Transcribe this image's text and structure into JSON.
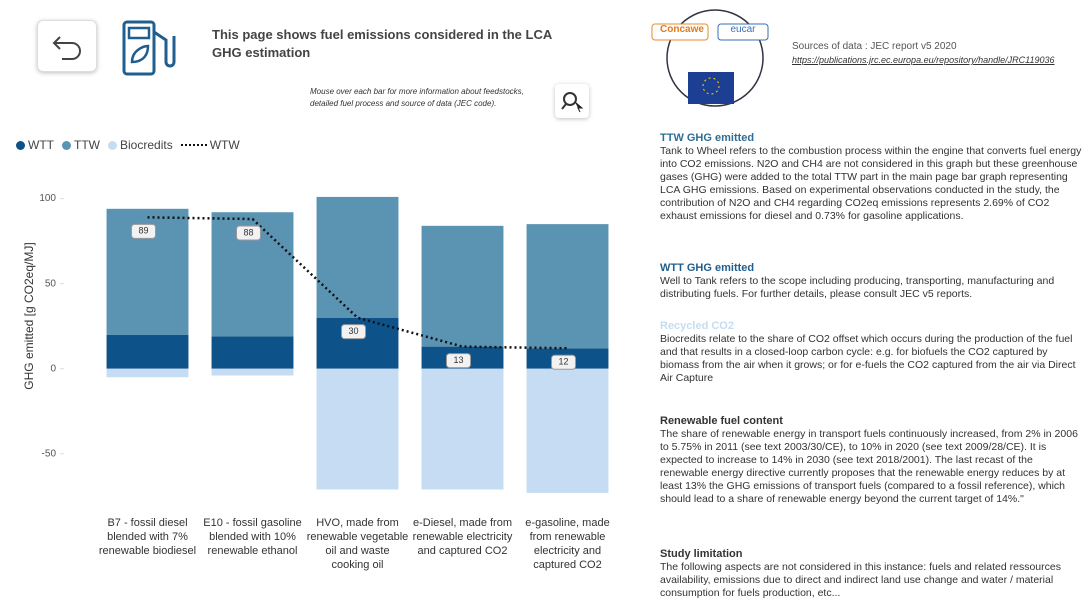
{
  "header": {
    "title": "This page shows fuel emissions considered in the LCA GHG estimation",
    "hint": "Mouse over each bar for more information about feedstocks, detailed fuel process and source of data (JEC code)."
  },
  "logos": {
    "left": "Concawe",
    "right": "eucar"
  },
  "sources": {
    "label": "Sources of data : JEC report v5 2020",
    "link": "https://publications.jrc.ec.europa.eu/repository/handle/JRC119036"
  },
  "sections": [
    {
      "heading": "TTW GHG emitted",
      "body": "Tank to Wheel refers to the combustion process within the engine that converts fuel energy into CO2 emissions. N2O and CH4 are not considered in this graph but these greenhouse gases (GHG) were added to the total TTW part in the main page bar graph representing LCA GHG emissions. Based on experimental observations conducted in the study, the contribution of N2O and CH4 regarding CO2eq emissions represents 2.69% of CO2 exhaust emissions for diesel and 0.73% for gasoline applications."
    },
    {
      "heading": "WTT GHG emitted",
      "body": "Well to Tank refers to the scope including producing, transporting, manufacturing and distributing fuels. For further details, please consult JEC v5 reports."
    },
    {
      "heading": "Recycled CO2",
      "body": "Biocredits relate to the share of CO2 offset which occurs during the production of the fuel and that results in a closed-loop carbon cycle: e.g. for biofuels the CO2 captured by biomass from the air when it grows; or for e-fuels the CO2 captured from the air via Direct Air Capture"
    },
    {
      "heading": "Renewable fuel content",
      "body": "The share of renewable energy in transport fuels continuously increased, from 2% in 2006 to 5.75% in 2011 (see text 2003/30/CE), to 10% in 2020 (see text 2009/28/CE). It is expected to increase to 14% in 2030 (see text 2018/2001). The last recast of the renewable energy directive currently proposes that the renewable energy reduces by at least 13% the GHG emissions of transport fuels (compared to a fossil reference), which should lead to a share of renewable energy beyond the current target of 14%.\""
    },
    {
      "heading": "Study limitation",
      "body": "The following aspects are not considered in this instance:  fuels and related ressources availability, emissions due to direct and indirect land use change and water / material consumption for fuels production, etc..."
    }
  ],
  "chart_data": {
    "type": "bar",
    "y_label": "GHG emitted [g CO2eq/MJ]",
    "categories": [
      "B7 - fossil diesel blended with 7% renewable biodiesel",
      "E10 - fossil gasoline blended with 10% renewable ethanol",
      "HVO, made from renewable vegetable oil and waste cooking oil",
      "e-Diesel, made from renewable electricity and captured CO2",
      "e-gasoline, made from renewable electricity and captured CO2"
    ],
    "series": [
      {
        "name": "WTT",
        "color": "#0d5289",
        "values": [
          20,
          19,
          30,
          13,
          12
        ]
      },
      {
        "name": "TTW",
        "color": "#5b93b3",
        "values": [
          74,
          73,
          71,
          71,
          73
        ]
      },
      {
        "name": "Biocredits",
        "color": "#c5dcf2",
        "values": [
          -5,
          -4,
          -71,
          -71,
          -73
        ]
      },
      {
        "name": "WTW",
        "color": "#111111",
        "type": "line",
        "values": [
          89,
          88,
          30,
          13,
          12
        ]
      }
    ],
    "ylim": [
      -76,
      108
    ],
    "yticks": [
      -50,
      0,
      50,
      100
    ],
    "legend": "top-left"
  }
}
